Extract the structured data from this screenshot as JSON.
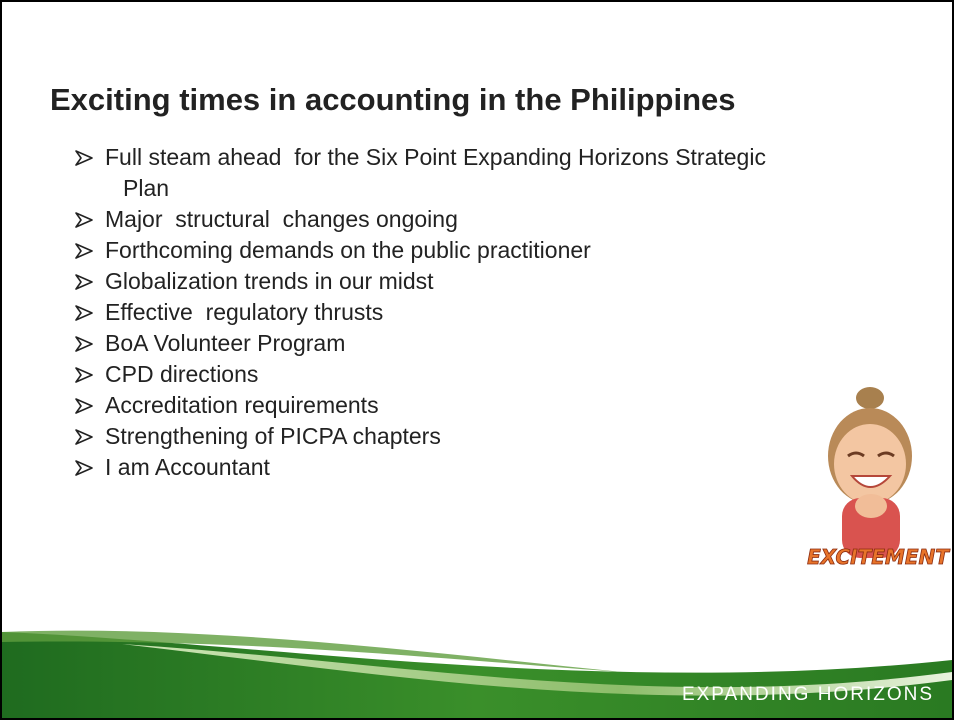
{
  "title": "Exciting times in accounting in the Philippines",
  "bullets": [
    "Full steam ahead  for the Six Point Expanding Horizons Strategic Plan",
    "Major  structural  changes ongoing",
    "Forthcoming demands on the public practitioner",
    "Globalization trends in our midst",
    "Effective  regulatory thrusts",
    "BoA Volunteer Program",
    "CPD directions",
    "Accreditation requirements",
    "Strengthening of PICPA chapters",
    "I am Accountant"
  ],
  "image": {
    "caption": "EXCITEMENT"
  },
  "footer": "EXPANDING  HORIZONS"
}
